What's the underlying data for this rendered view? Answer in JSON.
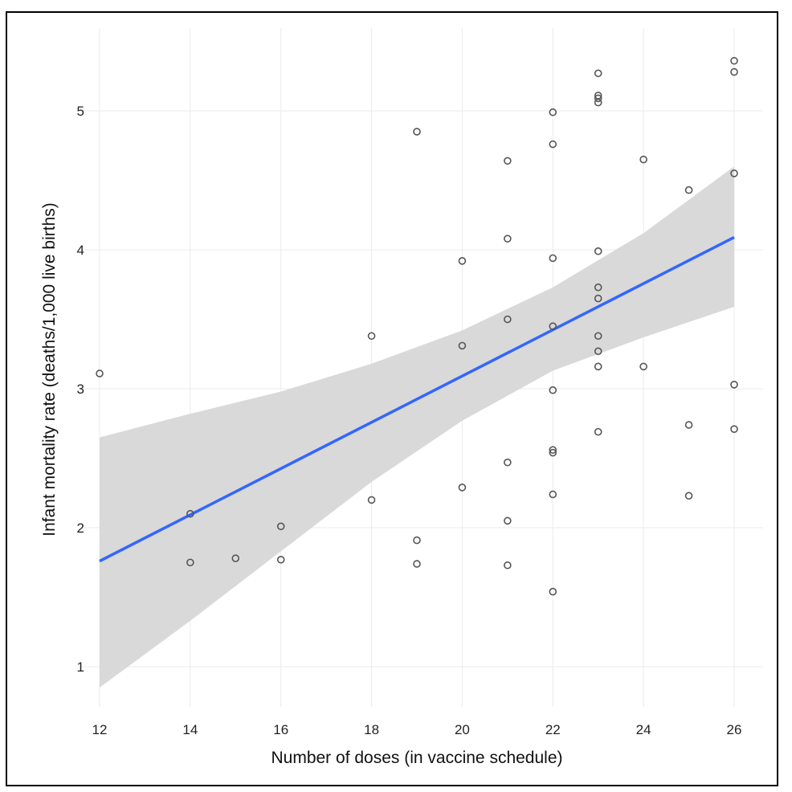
{
  "chart_data": {
    "type": "scatter",
    "title": "",
    "xlabel": "Number of doses (in vaccine schedule)",
    "ylabel": "Infant mortality rate (deaths/1,000 live births)",
    "xlim": [
      11.8,
      26.5
    ],
    "ylim": [
      0.7,
      5.55
    ],
    "xticks": [
      12,
      14,
      16,
      18,
      20,
      22,
      24,
      26
    ],
    "yticks": [
      1,
      2,
      3,
      4,
      5
    ],
    "grid": true,
    "colors": {
      "points": "#555555",
      "fit_line": "#3366ff",
      "ci_band": "#d9d9d9",
      "grid": "#ebebeb"
    },
    "points": [
      [
        12,
        3.11
      ],
      [
        14,
        2.1
      ],
      [
        14,
        1.75
      ],
      [
        15,
        1.78
      ],
      [
        16,
        2.01
      ],
      [
        16,
        1.77
      ],
      [
        18,
        3.38
      ],
      [
        18,
        2.2
      ],
      [
        19,
        4.85
      ],
      [
        19,
        1.91
      ],
      [
        19,
        1.74
      ],
      [
        20,
        3.92
      ],
      [
        20,
        3.31
      ],
      [
        20,
        2.29
      ],
      [
        21,
        4.64
      ],
      [
        21,
        4.08
      ],
      [
        21,
        3.5
      ],
      [
        21,
        2.47
      ],
      [
        21,
        2.05
      ],
      [
        21,
        1.73
      ],
      [
        22,
        4.99
      ],
      [
        22,
        4.76
      ],
      [
        22,
        3.94
      ],
      [
        22,
        3.45
      ],
      [
        22,
        2.99
      ],
      [
        22,
        2.56
      ],
      [
        22,
        2.54
      ],
      [
        22,
        2.24
      ],
      [
        22,
        1.54
      ],
      [
        23,
        5.27
      ],
      [
        23,
        5.11
      ],
      [
        23,
        5.09
      ],
      [
        23,
        5.06
      ],
      [
        23,
        3.99
      ],
      [
        23,
        3.73
      ],
      [
        23,
        3.65
      ],
      [
        23,
        3.38
      ],
      [
        23,
        3.27
      ],
      [
        23,
        3.16
      ],
      [
        23,
        2.69
      ],
      [
        24,
        4.65
      ],
      [
        24,
        3.16
      ],
      [
        25,
        4.43
      ],
      [
        25,
        2.74
      ],
      [
        25,
        2.23
      ],
      [
        26,
        5.36
      ],
      [
        26,
        5.28
      ],
      [
        26,
        4.55
      ],
      [
        26,
        3.03
      ],
      [
        26,
        2.71
      ]
    ],
    "fit_line": {
      "x": [
        12,
        26
      ],
      "y": [
        1.76,
        4.09
      ]
    },
    "ci_band": {
      "x": [
        12,
        14,
        16,
        18,
        20,
        22,
        24,
        26
      ],
      "upper": [
        2.65,
        2.82,
        2.98,
        3.18,
        3.42,
        3.73,
        4.12,
        4.6
      ],
      "lower": [
        0.85,
        1.33,
        1.83,
        2.33,
        2.77,
        3.13,
        3.37,
        3.59
      ]
    }
  }
}
